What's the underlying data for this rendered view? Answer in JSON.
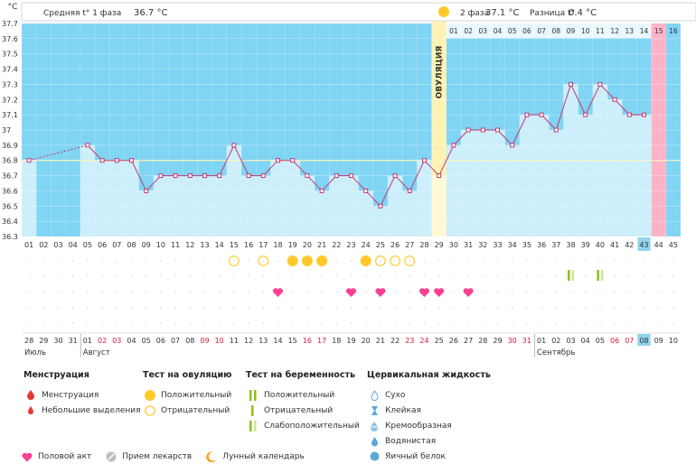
{
  "header": {
    "unit": "°C",
    "phase1_label": "Средняя t° 1 фаза",
    "phase1_value": "36.7 °C",
    "phase2_label": "2 фаза",
    "phase2_value": "37.1 °C",
    "diff_label": "Разница t°",
    "diff_value": "0.4 °C",
    "ovulation_label": "ОВУЛЯЦИЯ"
  },
  "chart_data": {
    "type": "line",
    "title": "",
    "ylabel": "°C",
    "ylim": [
      36.3,
      37.7
    ],
    "y_ticks": [
      "37.7",
      "37.6",
      "37.5",
      "37.4",
      "37.3",
      "37.2",
      "37.1",
      "37",
      "36.9",
      "36.8",
      "36.7",
      "36.6",
      "36.5",
      "36.4",
      "36.3"
    ],
    "coverline": 36.8,
    "cycle_days": [
      "01",
      "02",
      "03",
      "04",
      "05",
      "06",
      "07",
      "08",
      "09",
      "10",
      "11",
      "12",
      "13",
      "14",
      "15",
      "16",
      "17",
      "18",
      "19",
      "20",
      "21",
      "22",
      "23",
      "24",
      "25",
      "26",
      "27",
      "28",
      "29",
      "30",
      "31",
      "32",
      "33",
      "34",
      "35",
      "36",
      "37",
      "38",
      "39",
      "40",
      "41",
      "42",
      "43",
      "44",
      "45"
    ],
    "current_day": "43",
    "phase2_days": [
      "01",
      "02",
      "03",
      "04",
      "05",
      "06",
      "07",
      "08",
      "09",
      "10",
      "11",
      "12",
      "13",
      "14",
      "15",
      "16"
    ],
    "temperatures": [
      36.8,
      null,
      null,
      null,
      36.9,
      36.8,
      36.8,
      36.8,
      36.6,
      36.7,
      36.7,
      36.7,
      36.7,
      36.7,
      36.9,
      36.7,
      36.7,
      36.8,
      36.8,
      36.7,
      36.6,
      36.7,
      36.7,
      36.6,
      36.5,
      36.7,
      36.6,
      36.8,
      36.7,
      36.9,
      37.0,
      37.0,
      37.0,
      36.9,
      37.1,
      37.1,
      37.0,
      37.3,
      37.1,
      37.3,
      37.2,
      37.1,
      37.1,
      null,
      null
    ],
    "ovulation_day": 29,
    "menstruation_day": 44,
    "ovulation_tests": {
      "positive": [
        19,
        20,
        21,
        24
      ],
      "negative": [
        15,
        17,
        25,
        26,
        27
      ]
    },
    "pregnancy_tests": [
      38,
      40
    ],
    "intercourse_days": [
      18,
      23,
      25,
      28,
      29,
      31
    ],
    "calendar": {
      "dates": [
        "28",
        "29",
        "30",
        "31",
        "01",
        "02",
        "03",
        "04",
        "05",
        "06",
        "07",
        "08",
        "09",
        "10",
        "11",
        "12",
        "13",
        "14",
        "15",
        "16",
        "17",
        "18",
        "19",
        "20",
        "21",
        "22",
        "23",
        "24",
        "25",
        "26",
        "27",
        "28",
        "29",
        "30",
        "31",
        "01",
        "02",
        "03",
        "04",
        "05",
        "06",
        "07",
        "08",
        "09",
        "10"
      ],
      "weekend": [
        "02",
        "03",
        "09",
        "10",
        "16",
        "17",
        "23",
        "24",
        "30",
        "31",
        "06",
        "07"
      ],
      "months": [
        "Июль",
        "Август",
        "Сентябрь"
      ],
      "today": "08"
    }
  },
  "legend": {
    "menstruation": {
      "title": "Менструация",
      "items": [
        "Менструация",
        "Небольшие выделения"
      ]
    },
    "ovulation_test": {
      "title": "Тест на овуляцию",
      "items": [
        "Положительный",
        "Отрицательный"
      ]
    },
    "pregnancy_test": {
      "title": "Тест на беременность",
      "items": [
        "Положительный",
        "Отрицательный",
        "Слабоположительный"
      ]
    },
    "cervical": {
      "title": "Цервикальная жидкость",
      "items": [
        "Сухо",
        "Клейкая",
        "Кремообразная",
        "Водянистая",
        "Яичный белок"
      ]
    },
    "bottom": [
      "Половой акт",
      "Прием лекарств",
      "Лунный календарь"
    ]
  },
  "colors": {
    "bar": "#cdeefb",
    "phase_bg": "#80d4f4",
    "ovulation": "#fff2b3",
    "menstruation": "#ffb3c6",
    "line": "#c33a70",
    "heart": "#ff3f93",
    "yellow": "#ffc92b",
    "green": "#8fbf1a"
  }
}
